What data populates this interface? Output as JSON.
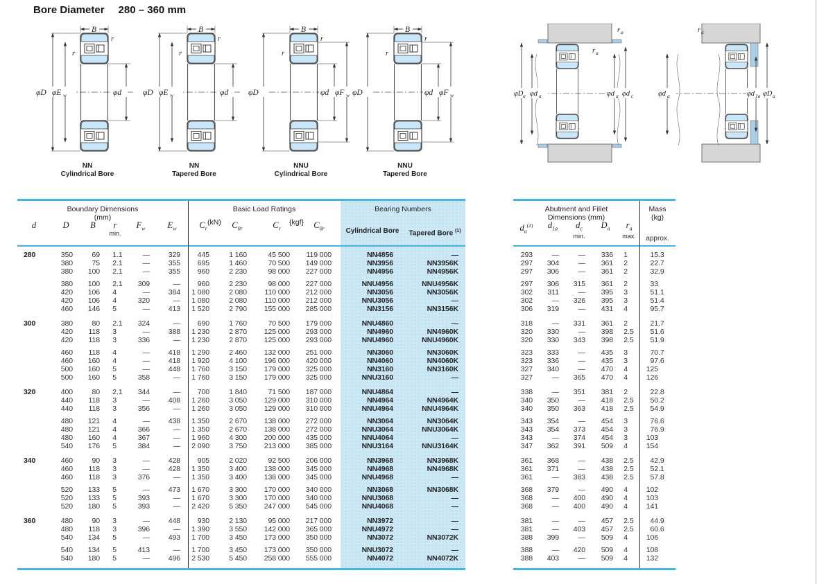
{
  "page": {
    "title_label": "Bore Diameter",
    "title_range": "280 – 360 mm"
  },
  "diagrams": {
    "captions": [
      {
        "l1": "NN",
        "l2": "Cylindrical Bore"
      },
      {
        "l1": "NN",
        "l2": "Tapered Bore"
      },
      {
        "l1": "NNU",
        "l2": "Cylindrical Bore"
      },
      {
        "l1": "NNU",
        "l2": "Tapered Bore"
      }
    ],
    "labels": {
      "B": "B",
      "r": "r",
      "phiD": "φD",
      "phiE": "φE",
      "phid": "φd",
      "phiF": "φF",
      "w": "w"
    },
    "mount": {
      "phiD": "φD",
      "phid": "φd",
      "a": "a",
      "c": "c",
      "oneA": "1a",
      "r": "r"
    }
  },
  "table_left": {
    "boundary_title": "Boundary Dimensions",
    "boundary_unit": "(mm)",
    "load_title": "Basic Load Ratings",
    "unit_kn": "(kN)",
    "unit_kgf": "{kgf}",
    "numbers_title": "Bearing Numbers",
    "col_cyl": "Cylindrical Bore",
    "col_tap": "Tapered Bore ",
    "col_tap_sup": "(1)",
    "sym_d": "d",
    "sym_D": "D",
    "sym_B": "B",
    "sym_r": "r",
    "r_note": "min.",
    "sym_F": "F",
    "sym_E": "E",
    "sub_w": "w",
    "sym_C": "C",
    "sub_r": "r",
    "sub_0r": "0r"
  },
  "table_right": {
    "title1": "Abutment and Fillet",
    "title2": "Dimensions (mm)",
    "mass1": "Mass",
    "mass2": "(kg)",
    "approx": "approx.",
    "sym_d": "d",
    "sub_a": "a",
    "sup2": "(2)",
    "sub_1a": "1a",
    "sub_c": "c",
    "dc_note": "min.",
    "sym_D": "D",
    "sym_r": "r",
    "ra_note": "max."
  },
  "rows": [
    {
      "g": "",
      "d": "280",
      "D": "350",
      "B": "69",
      "r": "1.1",
      "fw": "—",
      "ew": "329",
      "cr": "445",
      "c0r": "1 160",
      "crk": "45 500",
      "c0rk": "119 000",
      "cyl": "NN4856",
      "tap": "—",
      "da": "293",
      "d1a": "—",
      "dc": "—",
      "Da": "336",
      "ra": "1",
      "m": "15.3"
    },
    {
      "g": "",
      "d": "",
      "D": "380",
      "B": "75",
      "r": "2.1",
      "fw": "—",
      "ew": "355",
      "cr": "695",
      "c0r": "1 460",
      "crk": "70 500",
      "c0rk": "149 000",
      "cyl": "NN3956",
      "tap": "NN3956K",
      "da": "297",
      "d1a": "304",
      "dc": "—",
      "Da": "361",
      "ra": "2",
      "m": "22.7"
    },
    {
      "g": "",
      "d": "",
      "D": "380",
      "B": "100",
      "r": "2.1",
      "fw": "—",
      "ew": "355",
      "cr": "960",
      "c0r": "2 230",
      "crk": "98 000",
      "c0rk": "227 000",
      "cyl": "NN4956",
      "tap": "NN4956K",
      "da": "297",
      "d1a": "306",
      "dc": "—",
      "Da": "361",
      "ra": "2",
      "m": "32.9"
    },
    {
      "g": "s",
      "d": "",
      "D": "380",
      "B": "100",
      "r": "2.1",
      "fw": "309",
      "ew": "—",
      "cr": "960",
      "c0r": "2 230",
      "crk": "98 000",
      "c0rk": "227 000",
      "cyl": "NNU4956",
      "tap": "NNU4956K",
      "da": "297",
      "d1a": "306",
      "dc": "315",
      "Da": "361",
      "ra": "2",
      "m": "33"
    },
    {
      "g": "",
      "d": "",
      "D": "420",
      "B": "106",
      "r": "4",
      "fw": "—",
      "ew": "384",
      "cr": "1 080",
      "c0r": "2 080",
      "crk": "110 000",
      "c0rk": "212 000",
      "cyl": "NN3056",
      "tap": "NN3056K",
      "da": "302",
      "d1a": "311",
      "dc": "—",
      "Da": "395",
      "ra": "3",
      "m": "51.1"
    },
    {
      "g": "",
      "d": "",
      "D": "420",
      "B": "106",
      "r": "4",
      "fw": "320",
      "ew": "—",
      "cr": "1 080",
      "c0r": "2 080",
      "crk": "110 000",
      "c0rk": "212 000",
      "cyl": "NNU3056",
      "tap": "—",
      "da": "302",
      "d1a": "—",
      "dc": "326",
      "Da": "395",
      "ra": "3",
      "m": "51.4"
    },
    {
      "g": "",
      "d": "",
      "D": "460",
      "B": "146",
      "r": "5",
      "fw": "—",
      "ew": "413",
      "cr": "1 520",
      "c0r": "2 790",
      "crk": "155 000",
      "c0rk": "285 000",
      "cyl": "NN3156",
      "tap": "NN3156K",
      "da": "306",
      "d1a": "319",
      "dc": "—",
      "Da": "431",
      "ra": "4",
      "m": "95.7"
    },
    {
      "g": "g",
      "d": "300",
      "D": "380",
      "B": "80",
      "r": "2.1",
      "fw": "324",
      "ew": "—",
      "cr": "690",
      "c0r": "1 760",
      "crk": "70 500",
      "c0rk": "179 000",
      "cyl": "NNU4860",
      "tap": "—",
      "da": "318",
      "d1a": "—",
      "dc": "331",
      "Da": "361",
      "ra": "2",
      "m": "21.7"
    },
    {
      "g": "",
      "d": "",
      "D": "420",
      "B": "118",
      "r": "3",
      "fw": "—",
      "ew": "388",
      "cr": "1 230",
      "c0r": "2 870",
      "crk": "125 000",
      "c0rk": "293 000",
      "cyl": "NN4960",
      "tap": "NN4960K",
      "da": "320",
      "d1a": "330",
      "dc": "—",
      "Da": "398",
      "ra": "2.5",
      "m": "51.6"
    },
    {
      "g": "",
      "d": "",
      "D": "420",
      "B": "118",
      "r": "3",
      "fw": "336",
      "ew": "—",
      "cr": "1 230",
      "c0r": "2 870",
      "crk": "125 000",
      "c0rk": "293 000",
      "cyl": "NNU4960",
      "tap": "NNU4960K",
      "da": "320",
      "d1a": "330",
      "dc": "343",
      "Da": "398",
      "ra": "2.5",
      "m": "51.9"
    },
    {
      "g": "s",
      "d": "",
      "D": "460",
      "B": "118",
      "r": "4",
      "fw": "—",
      "ew": "418",
      "cr": "1 290",
      "c0r": "2 460",
      "crk": "132 000",
      "c0rk": "251 000",
      "cyl": "NN3060",
      "tap": "NN3060K",
      "da": "323",
      "d1a": "333",
      "dc": "—",
      "Da": "435",
      "ra": "3",
      "m": "70.7"
    },
    {
      "g": "",
      "d": "",
      "D": "460",
      "B": "160",
      "r": "4",
      "fw": "—",
      "ew": "418",
      "cr": "1 920",
      "c0r": "4 100",
      "crk": "196 000",
      "c0rk": "420 000",
      "cyl": "NN4060",
      "tap": "NN4060K",
      "da": "323",
      "d1a": "336",
      "dc": "—",
      "Da": "435",
      "ra": "3",
      "m": "97.6"
    },
    {
      "g": "",
      "d": "",
      "D": "500",
      "B": "160",
      "r": "5",
      "fw": "—",
      "ew": "448",
      "cr": "1 760",
      "c0r": "3 150",
      "crk": "179 000",
      "c0rk": "325 000",
      "cyl": "NN3160",
      "tap": "NN3160K",
      "da": "327",
      "d1a": "340",
      "dc": "—",
      "Da": "470",
      "ra": "4",
      "m": "125"
    },
    {
      "g": "",
      "d": "",
      "D": "500",
      "B": "160",
      "r": "5",
      "fw": "358",
      "ew": "—",
      "cr": "1 760",
      "c0r": "3 150",
      "crk": "179 000",
      "c0rk": "325 000",
      "cyl": "NNU3160",
      "tap": "—",
      "da": "327",
      "d1a": "—",
      "dc": "365",
      "Da": "470",
      "ra": "4",
      "m": "126"
    },
    {
      "g": "g",
      "d": "320",
      "D": "400",
      "B": "80",
      "r": "2.1",
      "fw": "344",
      "ew": "—",
      "cr": "700",
      "c0r": "1 840",
      "crk": "71 500",
      "c0rk": "187 000",
      "cyl": "NNU4864",
      "tap": "—",
      "da": "338",
      "d1a": "—",
      "dc": "351",
      "Da": "381",
      "ra": "2",
      "m": "22.8"
    },
    {
      "g": "",
      "d": "",
      "D": "440",
      "B": "118",
      "r": "3",
      "fw": "—",
      "ew": "408",
      "cr": "1 260",
      "c0r": "3 050",
      "crk": "129 000",
      "c0rk": "310 000",
      "cyl": "NN4964",
      "tap": "NN4964K",
      "da": "340",
      "d1a": "350",
      "dc": "—",
      "Da": "418",
      "ra": "2.5",
      "m": "50.2"
    },
    {
      "g": "",
      "d": "",
      "D": "440",
      "B": "118",
      "r": "3",
      "fw": "356",
      "ew": "—",
      "cr": "1 260",
      "c0r": "3 050",
      "crk": "129 000",
      "c0rk": "310 000",
      "cyl": "NNU4964",
      "tap": "NNU4964K",
      "da": "340",
      "d1a": "350",
      "dc": "363",
      "Da": "418",
      "ra": "2.5",
      "m": "54.9"
    },
    {
      "g": "s",
      "d": "",
      "D": "480",
      "B": "121",
      "r": "4",
      "fw": "—",
      "ew": "438",
      "cr": "1 350",
      "c0r": "2 670",
      "crk": "138 000",
      "c0rk": "272 000",
      "cyl": "NN3064",
      "tap": "NN3064K",
      "da": "343",
      "d1a": "354",
      "dc": "—",
      "Da": "454",
      "ra": "3",
      "m": "76.6"
    },
    {
      "g": "",
      "d": "",
      "D": "480",
      "B": "121",
      "r": "4",
      "fw": "366",
      "ew": "—",
      "cr": "1 350",
      "c0r": "2 670",
      "crk": "138 000",
      "c0rk": "272 000",
      "cyl": "NNU3064",
      "tap": "NNU3064K",
      "da": "343",
      "d1a": "354",
      "dc": "373",
      "Da": "454",
      "ra": "3",
      "m": "76.9"
    },
    {
      "g": "",
      "d": "",
      "D": "480",
      "B": "160",
      "r": "4",
      "fw": "367",
      "ew": "—",
      "cr": "1 960",
      "c0r": "4 300",
      "crk": "200 000",
      "c0rk": "435 000",
      "cyl": "NNU4064",
      "tap": "—",
      "da": "343",
      "d1a": "—",
      "dc": "374",
      "Da": "454",
      "ra": "3",
      "m": "103"
    },
    {
      "g": "",
      "d": "",
      "D": "540",
      "B": "176",
      "r": "5",
      "fw": "384",
      "ew": "—",
      "cr": "2 090",
      "c0r": "3 750",
      "crk": "213 000",
      "c0rk": "385 000",
      "cyl": "NNU3164",
      "tap": "NNU3164K",
      "da": "347",
      "d1a": "362",
      "dc": "391",
      "Da": "509",
      "ra": "4",
      "m": "154"
    },
    {
      "g": "g",
      "d": "340",
      "D": "460",
      "B": "90",
      "r": "3",
      "fw": "—",
      "ew": "428",
      "cr": "905",
      "c0r": "2 020",
      "crk": "92 500",
      "c0rk": "206 000",
      "cyl": "NN3968",
      "tap": "NN3968K",
      "da": "361",
      "d1a": "368",
      "dc": "—",
      "Da": "438",
      "ra": "2.5",
      "m": "42.9"
    },
    {
      "g": "",
      "d": "",
      "D": "460",
      "B": "118",
      "r": "3",
      "fw": "—",
      "ew": "428",
      "cr": "1 350",
      "c0r": "3 400",
      "crk": "138 000",
      "c0rk": "345 000",
      "cyl": "NN4968",
      "tap": "NN4968K",
      "da": "361",
      "d1a": "371",
      "dc": "—",
      "Da": "438",
      "ra": "2.5",
      "m": "52.1"
    },
    {
      "g": "",
      "d": "",
      "D": "460",
      "B": "118",
      "r": "3",
      "fw": "376",
      "ew": "—",
      "cr": "1 350",
      "c0r": "3 400",
      "crk": "138 000",
      "c0rk": "345 000",
      "cyl": "NNU4968",
      "tap": "—",
      "da": "361",
      "d1a": "—",
      "dc": "383",
      "Da": "438",
      "ra": "2.5",
      "m": "57.8"
    },
    {
      "g": "s",
      "d": "",
      "D": "520",
      "B": "133",
      "r": "5",
      "fw": "—",
      "ew": "473",
      "cr": "1 670",
      "c0r": "3 300",
      "crk": "170 000",
      "c0rk": "340 000",
      "cyl": "NN3068",
      "tap": "NN3068K",
      "da": "368",
      "d1a": "379",
      "dc": "—",
      "Da": "490",
      "ra": "4",
      "m": "102"
    },
    {
      "g": "",
      "d": "",
      "D": "520",
      "B": "133",
      "r": "5",
      "fw": "393",
      "ew": "—",
      "cr": "1 670",
      "c0r": "3 300",
      "crk": "170 000",
      "c0rk": "340 000",
      "cyl": "NNU3068",
      "tap": "—",
      "da": "368",
      "d1a": "—",
      "dc": "400",
      "Da": "490",
      "ra": "4",
      "m": "103"
    },
    {
      "g": "",
      "d": "",
      "D": "520",
      "B": "180",
      "r": "5",
      "fw": "393",
      "ew": "—",
      "cr": "2 420",
      "c0r": "5 350",
      "crk": "247 000",
      "c0rk": "545 000",
      "cyl": "NNU4068",
      "tap": "—",
      "da": "368",
      "d1a": "—",
      "dc": "400",
      "Da": "490",
      "ra": "4",
      "m": "141"
    },
    {
      "g": "g",
      "d": "360",
      "D": "480",
      "B": "90",
      "r": "3",
      "fw": "—",
      "ew": "448",
      "cr": "930",
      "c0r": "2 130",
      "crk": "95 000",
      "c0rk": "217 000",
      "cyl": "NN3972",
      "tap": "—",
      "da": "381",
      "d1a": "—",
      "dc": "—",
      "Da": "457",
      "ra": "2.5",
      "m": "44.9"
    },
    {
      "g": "",
      "d": "",
      "D": "480",
      "B": "118",
      "r": "3",
      "fw": "396",
      "ew": "—",
      "cr": "1 390",
      "c0r": "3 550",
      "crk": "142 000",
      "c0rk": "365 000",
      "cyl": "NNU4972",
      "tap": "—",
      "da": "381",
      "d1a": "—",
      "dc": "403",
      "Da": "457",
      "ra": "2.5",
      "m": "60.6"
    },
    {
      "g": "",
      "d": "",
      "D": "540",
      "B": "134",
      "r": "5",
      "fw": "—",
      "ew": "493",
      "cr": "1 700",
      "c0r": "3 450",
      "crk": "173 000",
      "c0rk": "350 000",
      "cyl": "NN3072",
      "tap": "NN3072K",
      "da": "388",
      "d1a": "399",
      "dc": "—",
      "Da": "509",
      "ra": "4",
      "m": "106"
    },
    {
      "g": "s",
      "d": "",
      "D": "540",
      "B": "134",
      "r": "5",
      "fw": "413",
      "ew": "—",
      "cr": "1 700",
      "c0r": "3 450",
      "crk": "173 000",
      "c0rk": "350 000",
      "cyl": "NNU3072",
      "tap": "—",
      "da": "388",
      "d1a": "—",
      "dc": "420",
      "Da": "509",
      "ra": "4",
      "m": "108"
    },
    {
      "g": "",
      "d": "",
      "D": "540",
      "B": "180",
      "r": "5",
      "fw": "—",
      "ew": "496",
      "cr": "2 530",
      "c0r": "5 450",
      "crk": "258 000",
      "c0rk": "555 000",
      "cyl": "NN4072",
      "tap": "NN4072K",
      "da": "388",
      "d1a": "403",
      "dc": "—",
      "Da": "509",
      "ra": "4",
      "m": "132"
    }
  ]
}
